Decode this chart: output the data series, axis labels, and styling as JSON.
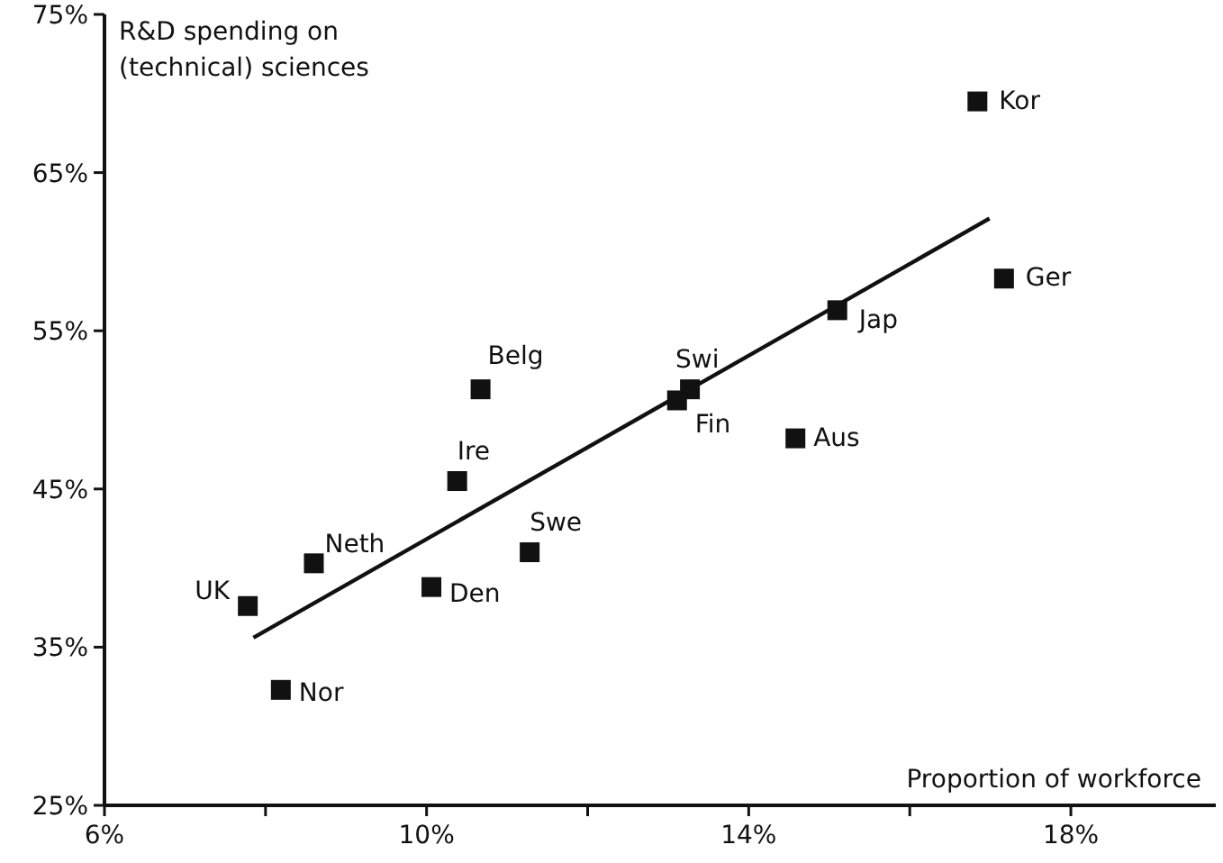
{
  "chart_data": {
    "type": "scatter",
    "ylabel": "R&D spending on (technical) sciences",
    "xlabel": "Proportion of workforce",
    "xlim": [
      6,
      19.8
    ],
    "ylim": [
      25,
      75
    ],
    "xticks": [
      {
        "value": 6,
        "label": "6%"
      },
      {
        "value": 8,
        "label": null
      },
      {
        "value": 10,
        "label": "10%"
      },
      {
        "value": 12,
        "label": null
      },
      {
        "value": 14,
        "label": "14%"
      },
      {
        "value": 16,
        "label": null
      },
      {
        "value": 18,
        "label": "18%"
      }
    ],
    "yticks": [
      {
        "value": 25,
        "label": "25%"
      },
      {
        "value": 35,
        "label": "35%"
      },
      {
        "value": 45,
        "label": "45%"
      },
      {
        "value": 55,
        "label": "55%"
      },
      {
        "value": 65,
        "label": "65%"
      },
      {
        "value": 75,
        "label": "75%"
      }
    ],
    "grid": false,
    "series": [
      {
        "marker": "square",
        "color": "#111111",
        "x": [
          7.78,
          8.6,
          8.19,
          10.06,
          10.38,
          10.67,
          11.28,
          13.11,
          13.27,
          14.58,
          15.1,
          16.84,
          17.17
        ],
        "values": [
          37.6,
          40.3,
          32.3,
          38.8,
          45.5,
          51.3,
          41.0,
          50.6,
          51.3,
          48.2,
          56.3,
          69.5,
          58.3
        ]
      },
      {
        "type": "line",
        "color": "#111111",
        "x": [
          7.85,
          16.99
        ],
        "values": [
          35.6,
          62.1
        ],
        "line_style": "solid"
      }
    ],
    "annotations": [
      {
        "text": "UK",
        "x": 7.78,
        "y": 37.6
      },
      {
        "text": "Neth",
        "x": 8.6,
        "y": 40.3
      },
      {
        "text": "Nor",
        "x": 8.19,
        "y": 32.3
      },
      {
        "text": "Den",
        "x": 10.06,
        "y": 38.8
      },
      {
        "text": "Ire",
        "x": 10.38,
        "y": 45.5
      },
      {
        "text": "Belg",
        "x": 10.67,
        "y": 51.3
      },
      {
        "text": "Swe",
        "x": 11.28,
        "y": 41.0
      },
      {
        "text": "Fin",
        "x": 13.11,
        "y": 50.6
      },
      {
        "text": "Swi",
        "x": 13.27,
        "y": 51.3
      },
      {
        "text": "Aus",
        "x": 14.58,
        "y": 48.2
      },
      {
        "text": "Jap",
        "x": 15.1,
        "y": 56.3
      },
      {
        "text": "Kor",
        "x": 16.84,
        "y": 69.5
      },
      {
        "text": "Ger",
        "x": 17.17,
        "y": 58.3
      }
    ]
  }
}
